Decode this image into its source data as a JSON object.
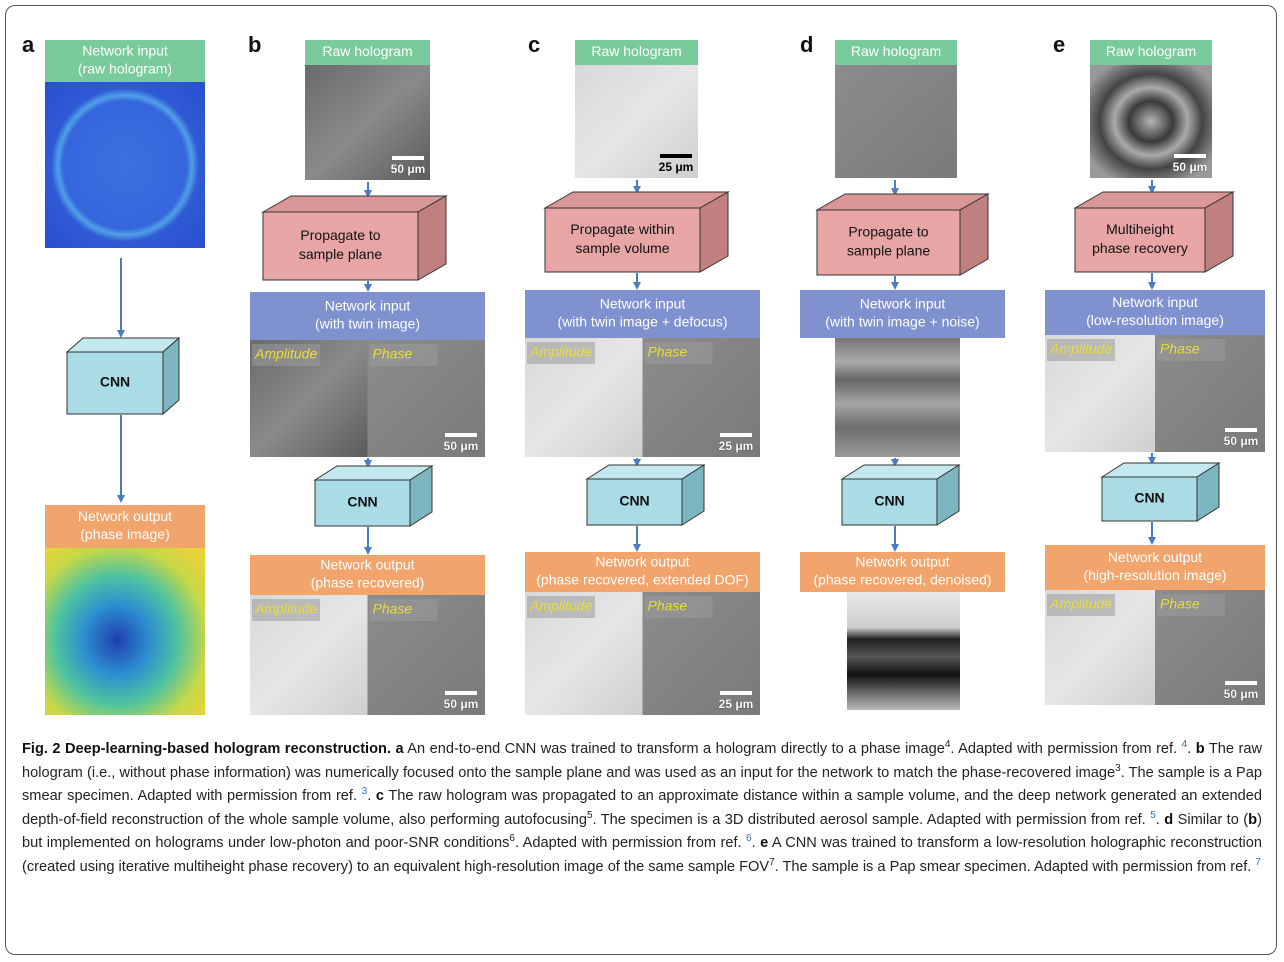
{
  "panels": [
    {
      "letter": "a",
      "input_label": [
        "Network input",
        "(raw hologram)"
      ],
      "cnn": "CNN",
      "output_label": [
        "Network output",
        "(phase image)"
      ]
    },
    {
      "letter": "b",
      "raw_label": "Raw hologram",
      "raw_scale": "50 μm",
      "process": [
        "Propagate to",
        "sample plane"
      ],
      "input_label": [
        "Network input",
        "(with twin image)"
      ],
      "input_amplitude": "Amplitude",
      "input_phase": "Phase",
      "input_scale": "50 μm",
      "cnn": "CNN",
      "output_label": [
        "Network output",
        "(phase recovered)"
      ],
      "output_amplitude": "Amplitude",
      "output_phase": "Phase",
      "output_scale": "50 μm"
    },
    {
      "letter": "c",
      "raw_label": "Raw hologram",
      "raw_scale": "25 μm",
      "process": [
        "Propagate within",
        "sample volume"
      ],
      "input_label": [
        "Network input",
        "(with twin image + defocus)"
      ],
      "input_amplitude": "Amplitude",
      "input_phase": "Phase",
      "input_scale": "25 μm",
      "cnn": "CNN",
      "output_label": [
        "Network output",
        "(phase recovered, extended DOF)"
      ],
      "output_amplitude": "Amplitude",
      "output_phase": "Phase",
      "output_scale": "25 μm"
    },
    {
      "letter": "d",
      "raw_label": "Raw hologram",
      "process": [
        "Propagate to",
        "sample plane"
      ],
      "input_label": [
        "Network input",
        "(with twin image + noise)"
      ],
      "cnn": "CNN",
      "output_label": [
        "Network output",
        "(phase recovered, denoised)"
      ]
    },
    {
      "letter": "e",
      "raw_label": "Raw hologram",
      "raw_scale": "50 μm",
      "process": [
        "Multiheight",
        "phase recovery"
      ],
      "input_label": [
        "Network input",
        "(low-resolution image)"
      ],
      "input_amplitude": "Amplitude",
      "input_phase": "Phase",
      "input_scale": "50 μm",
      "cnn": "CNN",
      "output_label": [
        "Network output",
        "(high-resolution image)"
      ],
      "output_amplitude": "Amplitude",
      "output_phase": "Phase",
      "output_scale": "50 μm"
    }
  ],
  "caption": {
    "runs": [
      "Fig. 2 Deep-learning-based hologram reconstruction.",
      "a",
      "An end-to-end CNN was trained to transform a hologram directly to a phase image",
      "4",
      ". Adapted with permission from ref.",
      "4",
      ".",
      "b",
      "The raw hologram (i.e., without phase information) was numerically focused onto the sample plane and was used as an input for the network to match the phase-recovered image",
      "3",
      ". The sample is a Pap smear specimen. Adapted with permission from ref.",
      "3",
      ".",
      "c",
      "The raw hologram was propagated to an approximate distance within a sample volume, and the deep network generated an extended depth-of-field reconstruction of the whole sample volume, also performing autofocusing",
      "5",
      ". The specimen is a 3D distributed aerosol sample. Adapted with permission from ref.",
      "5",
      ".",
      "d",
      "Similar to (",
      "b",
      ") but implemented on holograms under low-photon and poor-SNR conditions",
      "6",
      ". Adapted with permission from ref.",
      "6",
      ".",
      "e",
      "A CNN was trained to transform a low-resolution holographic reconstruction (created using iterative multiheight phase recovery) to an equivalent high-resolution image of the same sample FOV",
      "7",
      ". The sample is a Pap smear specimen. Adapted with permission from ref.",
      "7"
    ]
  }
}
